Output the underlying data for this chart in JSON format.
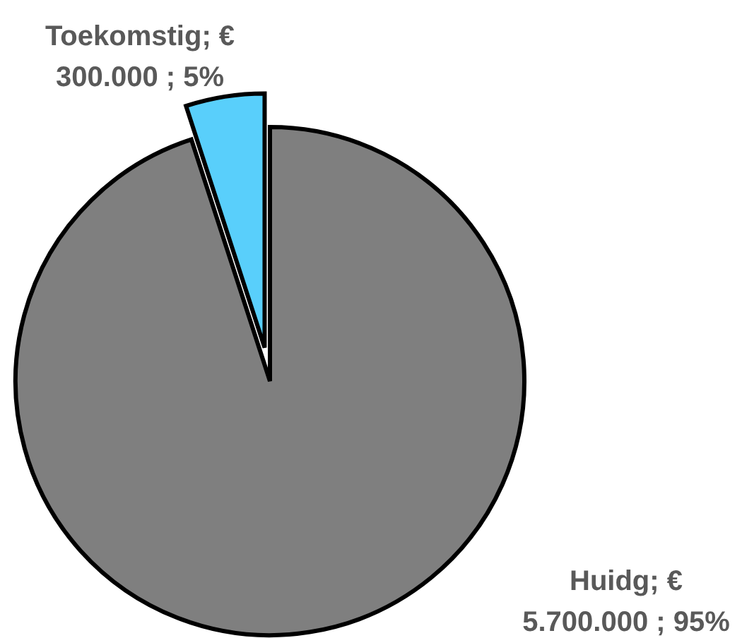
{
  "chart_data": {
    "type": "pie",
    "categories": [
      "Huidg",
      "Toekomstig"
    ],
    "values": [
      5700000,
      300000
    ],
    "colors": [
      "#7f7f7f",
      "#59cffb"
    ],
    "value_labels": [
      "€ 5.700.000 ; 95%",
      "€ 300.000 ; 5%"
    ]
  }
}
